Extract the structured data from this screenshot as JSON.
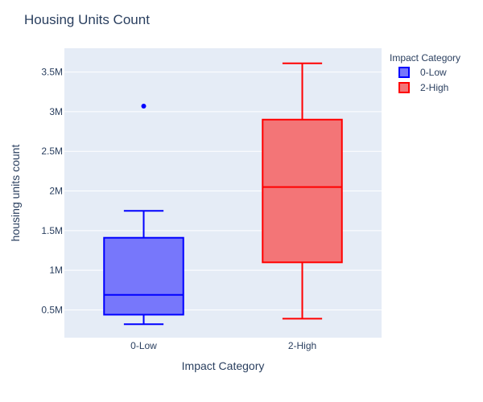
{
  "chart_data": {
    "type": "box",
    "title": "Housing Units Count",
    "xlabel": "Impact Category",
    "ylabel": "housing units count",
    "categories": [
      "0-Low",
      "2-High"
    ],
    "ylim": [
      150000,
      3800000
    ],
    "yticks": [
      500000,
      1000000,
      1500000,
      2000000,
      2500000,
      3000000,
      3500000
    ],
    "ytick_labels": [
      "0.5M",
      "1M",
      "1.5M",
      "2M",
      "2.5M",
      "3M",
      "3.5M"
    ],
    "grid": true,
    "legend": {
      "title": "Impact Category",
      "placement": "top-right",
      "entries": [
        "0-Low",
        "2-High"
      ]
    },
    "series": [
      {
        "name": "0-Low",
        "color": "#0000ff",
        "fill": "#7777fb",
        "whisker_low": 320000,
        "q1": 440000,
        "median": 690000,
        "q3": 1410000,
        "whisker_high": 1750000,
        "outliers": [
          3070000
        ]
      },
      {
        "name": "2-High",
        "color": "#ff0000",
        "fill": "#f37577",
        "whisker_low": 390000,
        "q1": 1100000,
        "median": 2050000,
        "q3": 2900000,
        "whisker_high": 3610000,
        "outliers": []
      }
    ],
    "plot_background": "#e5ecf6"
  }
}
